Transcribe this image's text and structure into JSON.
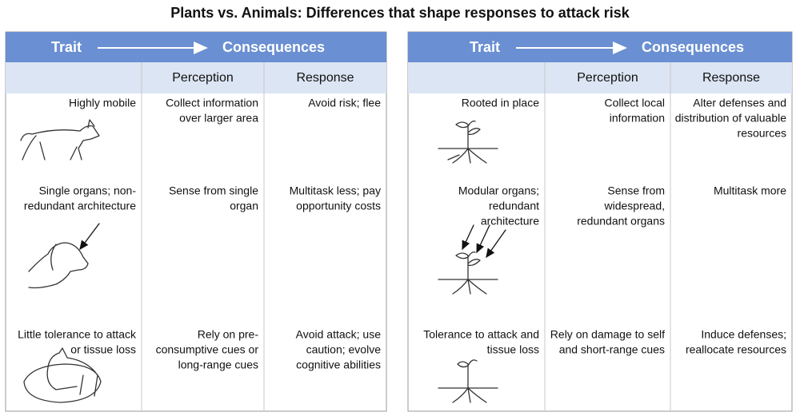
{
  "title": "Plants vs. Animals: Differences that shape responses to attack risk",
  "panels": [
    {
      "header": {
        "trait": "Trait",
        "consequences": "Consequences"
      },
      "columns": [
        "Perception",
        "Response"
      ],
      "rows": [
        {
          "trait": [
            "Highly mobile"
          ],
          "perception": [
            "Collect information",
            "over larger area"
          ],
          "response": [
            "Avoid risk; flee"
          ]
        },
        {
          "trait": [
            "Single organs; non-",
            "redundant architecture"
          ],
          "perception": [
            "Sense from single",
            "organ"
          ],
          "response": [
            "Multitask less; pay",
            "opportunity costs"
          ]
        },
        {
          "trait": [
            "Little tolerance to attack",
            "or tissue loss"
          ],
          "perception": [
            "Rely on pre-",
            "consumptive cues or",
            "long-range cues"
          ],
          "response": [
            "Avoid attack; use",
            "caution; evolve",
            "cognitive abilities"
          ]
        }
      ]
    },
    {
      "header": {
        "trait": "Trait",
        "consequences": "Consequences"
      },
      "columns": [
        "Perception",
        "Response"
      ],
      "rows": [
        {
          "trait": [
            "Rooted in place"
          ],
          "perception": [
            "Collect local",
            "information"
          ],
          "response": [
            "Alter defenses and",
            "distribution of valuable",
            "resources"
          ]
        },
        {
          "trait": [
            "Modular organs;",
            "redundant",
            "architecture"
          ],
          "perception": [
            "Sense from",
            "widespread,",
            "redundant organs"
          ],
          "response": [
            "Multitask more"
          ]
        },
        {
          "trait": [
            "Tolerance to attack and",
            "tissue loss"
          ],
          "perception": [
            "Rely on damage to self",
            "and short-range cues"
          ],
          "response": [
            "Induce defenses;",
            "reallocate resources"
          ]
        }
      ]
    }
  ]
}
